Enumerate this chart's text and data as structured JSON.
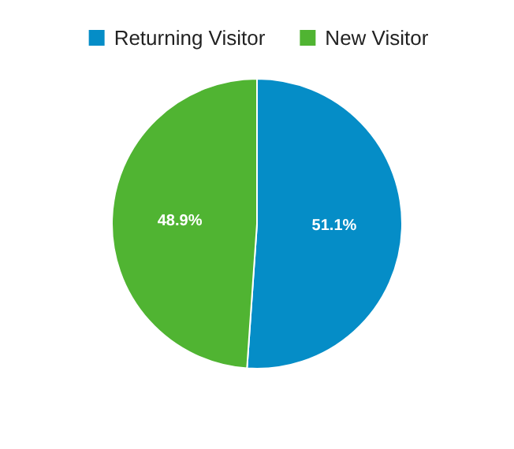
{
  "chart_data": {
    "type": "pie",
    "categories": [
      "Returning Visitor",
      "New Visitor"
    ],
    "values": [
      51.1,
      48.9
    ],
    "colors": [
      "#058dc7",
      "#50b432"
    ],
    "value_labels": [
      "51.1%",
      "48.9%"
    ],
    "legend": "top"
  }
}
